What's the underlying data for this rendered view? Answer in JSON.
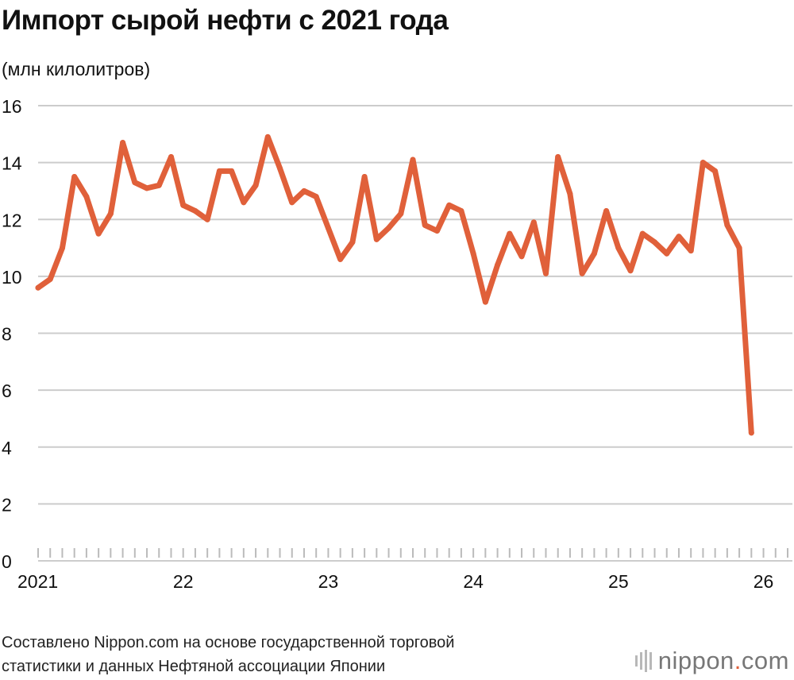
{
  "title": "Импорт сырой нефти с 2021 года",
  "unit_label": "(млн килолитров)",
  "source_lines": [
    "Составлено Nippon.com на основе государственной торговой",
    "статистики и данных Нефтяной ассоциации Японии"
  ],
  "logo": {
    "main": "nippon",
    "dot": ".",
    "suffix": "com"
  },
  "colors": {
    "line": "#e0603a",
    "grid": "#cccccc",
    "axis": "#222222"
  },
  "chart_data": {
    "type": "line",
    "title": "Импорт сырой нефти с 2021 года",
    "ylabel": "(млн килолитров)",
    "ylim": [
      0,
      16
    ],
    "yticks": [
      "0",
      "2",
      "4",
      "6",
      "8",
      "10",
      "12",
      "14",
      "16"
    ],
    "grid": true,
    "x_start": "2021-01",
    "x_end": "2026-03",
    "xticks": [
      {
        "at": "2021-01",
        "label": "2021"
      },
      {
        "at": "2022-01",
        "label": "22"
      },
      {
        "at": "2023-01",
        "label": "23"
      },
      {
        "at": "2024-01",
        "label": "24"
      },
      {
        "at": "2025-01",
        "label": "25"
      },
      {
        "at": "2026-01",
        "label": "26"
      }
    ],
    "series": [
      {
        "values": [
          {
            "x": "2021-01",
            "y": 9.6
          },
          {
            "x": "2021-02",
            "y": 9.9
          },
          {
            "x": "2021-03",
            "y": 11.0
          },
          {
            "x": "2021-04",
            "y": 13.5
          },
          {
            "x": "2021-05",
            "y": 12.8
          },
          {
            "x": "2021-06",
            "y": 11.5
          },
          {
            "x": "2021-07",
            "y": 12.2
          },
          {
            "x": "2021-08",
            "y": 14.7
          },
          {
            "x": "2021-09",
            "y": 13.3
          },
          {
            "x": "2021-10",
            "y": 13.1
          },
          {
            "x": "2021-11",
            "y": 13.2
          },
          {
            "x": "2021-12",
            "y": 14.2
          },
          {
            "x": "2022-01",
            "y": 12.5
          },
          {
            "x": "2022-02",
            "y": 12.3
          },
          {
            "x": "2022-03",
            "y": 12.0
          },
          {
            "x": "2022-04",
            "y": 13.7
          },
          {
            "x": "2022-05",
            "y": 13.7
          },
          {
            "x": "2022-06",
            "y": 12.6
          },
          {
            "x": "2022-07",
            "y": 13.2
          },
          {
            "x": "2022-08",
            "y": 14.9
          },
          {
            "x": "2022-09",
            "y": 13.8
          },
          {
            "x": "2022-10",
            "y": 12.6
          },
          {
            "x": "2022-11",
            "y": 13.0
          },
          {
            "x": "2022-12",
            "y": 12.8
          },
          {
            "x": "2023-01",
            "y": 11.7
          },
          {
            "x": "2023-02",
            "y": 10.6
          },
          {
            "x": "2023-03",
            "y": 11.2
          },
          {
            "x": "2023-04",
            "y": 13.5
          },
          {
            "x": "2023-05",
            "y": 11.3
          },
          {
            "x": "2023-06",
            "y": 11.7
          },
          {
            "x": "2023-07",
            "y": 12.2
          },
          {
            "x": "2023-08",
            "y": 14.1
          },
          {
            "x": "2023-09",
            "y": 11.8
          },
          {
            "x": "2023-10",
            "y": 11.6
          },
          {
            "x": "2023-11",
            "y": 12.5
          },
          {
            "x": "2023-12",
            "y": 12.3
          },
          {
            "x": "2024-01",
            "y": 10.8
          },
          {
            "x": "2024-02",
            "y": 9.1
          },
          {
            "x": "2024-03",
            "y": 10.4
          },
          {
            "x": "2024-04",
            "y": 11.5
          },
          {
            "x": "2024-05",
            "y": 10.7
          },
          {
            "x": "2024-06",
            "y": 11.9
          },
          {
            "x": "2024-07",
            "y": 10.1
          },
          {
            "x": "2024-08",
            "y": 14.2
          },
          {
            "x": "2024-09",
            "y": 12.9
          },
          {
            "x": "2024-10",
            "y": 10.1
          },
          {
            "x": "2024-11",
            "y": 10.8
          },
          {
            "x": "2024-12",
            "y": 12.3
          },
          {
            "x": "2025-01",
            "y": 11.0
          },
          {
            "x": "2025-02",
            "y": 10.2
          },
          {
            "x": "2025-03",
            "y": 11.5
          },
          {
            "x": "2025-04",
            "y": 11.2
          },
          {
            "x": "2025-05",
            "y": 10.8
          },
          {
            "x": "2025-06",
            "y": 11.4
          },
          {
            "x": "2025-07",
            "y": 10.9
          },
          {
            "x": "2025-08",
            "y": 14.0
          },
          {
            "x": "2025-09",
            "y": 13.7
          },
          {
            "x": "2025-10",
            "y": 11.8
          },
          {
            "x": "2025-11",
            "y": 11.0
          },
          {
            "x": "2025-12",
            "y": 4.5
          }
        ]
      }
    ]
  }
}
